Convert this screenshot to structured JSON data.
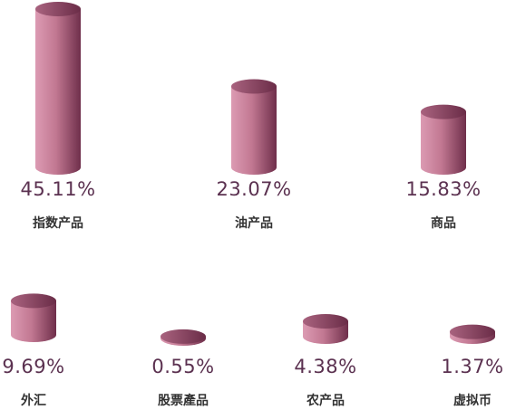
{
  "chart_data": {
    "type": "bar",
    "categories": [
      "指数产品",
      "油产品",
      "商品",
      "外汇",
      "股票產品",
      "农产品",
      "虚拟币"
    ],
    "values": [
      45.11,
      23.07,
      15.83,
      9.69,
      0.55,
      4.38,
      1.37
    ],
    "value_labels": [
      "45.11%",
      "23.07%",
      "15.83%",
      "9.69%",
      "0.55%",
      "4.38%",
      "1.37%"
    ]
  }
}
